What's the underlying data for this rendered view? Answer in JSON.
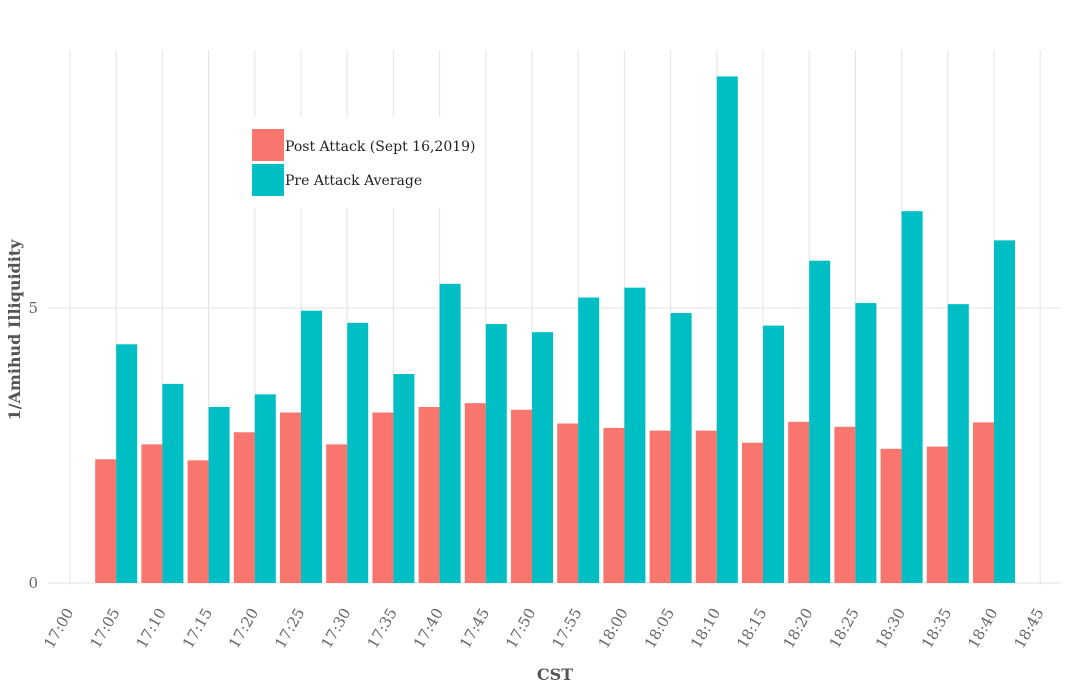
{
  "chart_data": {
    "type": "bar",
    "xlabel": "CST",
    "ylabel": "1/Amihud Illiquidity",
    "x_ticks": [
      "17:00",
      "17:05",
      "17:10",
      "17:15",
      "17:20",
      "17:25",
      "17:30",
      "17:35",
      "17:40",
      "17:45",
      "17:50",
      "17:55",
      "18:00",
      "18:05",
      "18:10",
      "18:15",
      "18:20",
      "18:25",
      "18:30",
      "18:35",
      "18:40",
      "18:45"
    ],
    "y_ticks": [
      "0",
      "5"
    ],
    "categories": [
      "17:05",
      "17:10",
      "17:15",
      "17:20",
      "17:25",
      "17:30",
      "17:35",
      "17:40",
      "17:45",
      "17:50",
      "17:55",
      "18:00",
      "18:05",
      "18:10",
      "18:15",
      "18:20",
      "18:25",
      "18:30",
      "18:35",
      "18:40"
    ],
    "series": [
      {
        "name": "Post Attack (Sept 16,2019)",
        "color": "#F8766D",
        "values": [
          2.25,
          2.52,
          2.23,
          2.74,
          3.1,
          2.52,
          3.1,
          3.2,
          3.27,
          3.15,
          2.9,
          2.82,
          2.77,
          2.77,
          2.55,
          2.93,
          2.84,
          2.44,
          2.48,
          2.92
        ]
      },
      {
        "name": "Pre Attack Average",
        "color": "#00BFC4",
        "values": [
          4.34,
          3.62,
          3.2,
          3.43,
          4.95,
          4.73,
          3.8,
          5.44,
          4.71,
          4.56,
          5.19,
          5.37,
          4.91,
          9.21,
          4.68,
          5.86,
          5.09,
          6.76,
          5.07,
          6.23
        ]
      }
    ],
    "ylim": [
      0,
      10
    ],
    "grid": true,
    "legend_position": "top-left, inside plot"
  }
}
